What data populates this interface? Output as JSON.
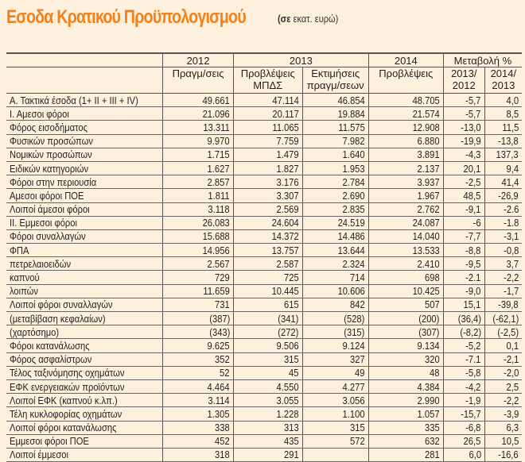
{
  "title": "Εσοδα Κρατικού Προϋπολογισμού",
  "unit_bold": "(σε",
  "unit_rest": " εκατ. ευρώ)",
  "colors": {
    "title": "#f0821e",
    "background": "#fdf0dc"
  },
  "header": {
    "years": [
      "2012",
      "2013",
      "2014",
      "Μεταβολή %"
    ],
    "sub": [
      "Πραγμ/σεις",
      "Προβλέψεις ΜΠΔΣ",
      "Εκτιμήσεις πραγμ/σεων",
      "Προβλέψεις",
      "2013/ 2012",
      "2014/ 2013"
    ]
  },
  "rows": [
    [
      "Α. Τακτικά έσοδα (1+ ΙΙ + ΙΙΙ + ΙV)",
      "49.661",
      "47.114",
      "46.854",
      "48.705",
      "-5,7",
      "4,0"
    ],
    [
      "Ι.  Αμεσοι φόροι",
      "21.096",
      "20.117",
      "19.884",
      "21.574",
      "-5,7",
      "8,5"
    ],
    [
      "Φόρος εισοδήματος",
      "13.311",
      "11.065",
      "11.575",
      "12.908",
      "-13,0",
      "11,5"
    ],
    [
      "Φυσικών προσώπων",
      "9.970",
      "7.759",
      "7.982",
      "6.880",
      "-19,9",
      "-13,8"
    ],
    [
      "Νομικών προσώπων",
      "1.715",
      "1.479",
      "1.640",
      "3.891",
      "-4,3",
      "137,3"
    ],
    [
      "Ειδικών κατηγοριών",
      "1.627",
      "1.827",
      "1.953",
      "2.137",
      "20,1",
      "9,4"
    ],
    [
      "Φόροι στην περιουσία",
      "2.857",
      "3.176",
      "2.784",
      "3.937",
      "-2,5",
      "41,4"
    ],
    [
      "Αμεσοι φόροι ΠΟΕ",
      "1.811",
      "3.307",
      "2.690",
      "1.967",
      "48,5",
      "-26,9"
    ],
    [
      "Λοιποί άμεσοι φόροι",
      "3.118",
      "2.569",
      "2.835",
      "2.762",
      "-9,1",
      "-2.6"
    ],
    [
      "ΙΙ. Εμμεσοι φόροι",
      "26.083",
      "24.604",
      "24.519",
      "24.087",
      "-6",
      "-1.8"
    ],
    [
      "Φόροι συναλλαγών",
      "15.688",
      "14.372",
      "14.486",
      "14.040",
      "-7,7",
      "-3,1"
    ],
    [
      "ΦΠΑ",
      "14.956",
      "13.757",
      "13.644",
      "13.533",
      "-8,8",
      "-0,8"
    ],
    [
      "πετρελαιοειδών",
      "2.567",
      "2.587",
      "2.324",
      "2.410",
      "-9,5",
      "3,7"
    ],
    [
      "καπνού",
      "729",
      "725",
      "714",
      "698",
      "-2.1",
      "-2,2"
    ],
    [
      "λοιπών",
      "11.659",
      "10.445",
      "10.606",
      "10.425",
      "-9,0",
      "-1,7"
    ],
    [
      "Λοιποί φόροι συναλλαγών",
      "731",
      "615",
      "842",
      "507",
      "15,1",
      "-39,8"
    ],
    [
      "(μεταβίβαση κεφαλαίων)",
      "(387)",
      "(341)",
      "(528)",
      "(200)",
      "(36,4)",
      "(-62,1)"
    ],
    [
      "(χαρτόσημο)",
      "(343)",
      "(272)",
      "(315)",
      "(307)",
      "(-8,2)",
      "(-2,5)"
    ],
    [
      "Φόροι κατανάλωσης",
      "9.625",
      "9.506",
      "9.124",
      "9.134",
      "-5,2",
      "0,1"
    ],
    [
      "Φόρος ασφαλίστρων",
      "352",
      "315",
      "327",
      "320",
      "-7.1",
      "-2,1"
    ],
    [
      "Τέλος ταξινόμησης οχημάτων",
      "52",
      "45",
      "49",
      "48",
      "-5,8",
      "-2,0"
    ],
    [
      "ΕΦΚ ενεργειακών προϊόντων",
      "4.464",
      "4.550",
      "4.277",
      "4.384",
      "-4,2",
      "2,5"
    ],
    [
      "Λοιποί ΕΦΚ (καπνού κ.λπ.)",
      "3.114",
      "3.055",
      "3.056",
      "2.990",
      "-1,9",
      "-2,2"
    ],
    [
      "Τέλη κυκλοφορίας οχημάτων",
      "1.305",
      "1.228",
      "1.100",
      "1.057",
      "-15,7",
      "-3,9"
    ],
    [
      "Λοιποί φόροι κατανάλωσης",
      "338",
      "313",
      "315",
      "335",
      "-6,8",
      "6,3"
    ],
    [
      "Εμμεσοι φόροι ΠΟΕ",
      "452",
      "435",
      "572",
      "632",
      "26,5",
      "10,5"
    ],
    [
      "Λοιποί έμμεσοι",
      "318",
      "291",
      "",
      "281",
      "6,0",
      "-16,6"
    ]
  ]
}
